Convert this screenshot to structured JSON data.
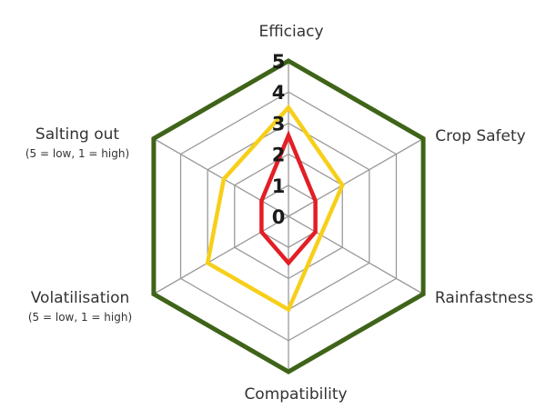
{
  "chart_data": {
    "type": "radar",
    "title": "",
    "axes": [
      "Efficiacy",
      "Crop Safety",
      "Rainfastness",
      "Compatibility",
      "Volatilisation",
      "Salting out"
    ],
    "axis_sublabels": [
      "",
      "",
      "",
      "",
      "(5 = low, 1 = high)",
      "(5 = low, 1 = high)"
    ],
    "scale_ticks": [
      "0",
      "1",
      "2",
      "3",
      "4",
      "5"
    ],
    "range": [
      0,
      5
    ],
    "series": [
      {
        "name": "green",
        "color": "#3f6419",
        "values": [
          5,
          5,
          5,
          5,
          5,
          5
        ]
      },
      {
        "name": "yellow",
        "color": "#f7cf1a",
        "values": [
          3.5,
          2,
          1.2,
          3,
          3,
          2.4
        ]
      },
      {
        "name": "red",
        "color": "#e31e24",
        "values": [
          2.6,
          1,
          1,
          1.5,
          1,
          1
        ]
      }
    ]
  }
}
